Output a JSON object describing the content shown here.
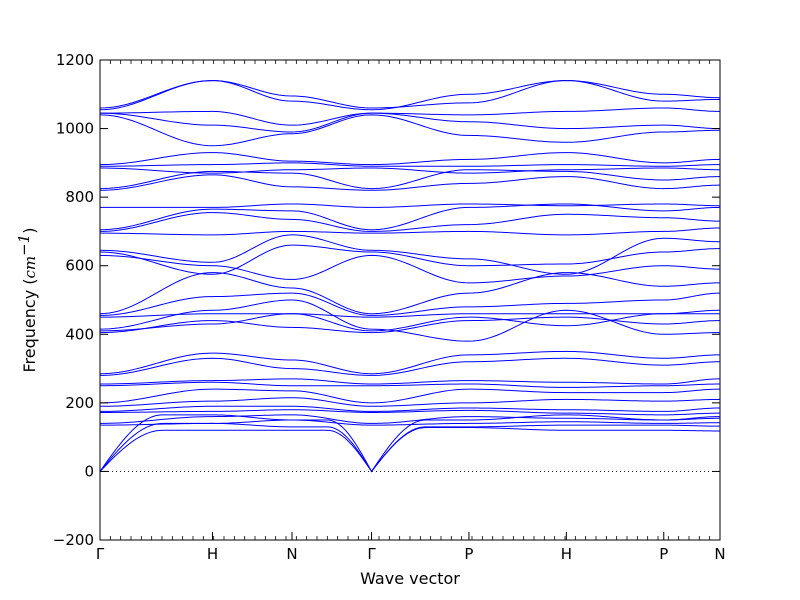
{
  "chart_data": {
    "type": "line",
    "title": "",
    "xlabel": "Wave vector",
    "ylabel": "Frequency",
    "ylabel_unit_base": "cm",
    "ylabel_unit_exp": "−1",
    "ylim": [
      -200,
      1200
    ],
    "yticks": [
      -200,
      0,
      200,
      400,
      600,
      800,
      1000,
      1200
    ],
    "grid": false,
    "legend": "none",
    "color": "#0000ff",
    "zero_line": true,
    "path_points": [
      {
        "label": "Γ",
        "x": 0
      },
      {
        "label": "H",
        "x": 1.0
      },
      {
        "label": "N",
        "x": 1.707
      },
      {
        "label": "Γ",
        "x": 2.414
      },
      {
        "label": "P",
        "x": 3.28
      },
      {
        "label": "H",
        "x": 4.146
      },
      {
        "label": "P",
        "x": 5.012
      },
      {
        "label": "N",
        "x": 5.512
      }
    ],
    "branch_values": [
      [
        0,
        120,
        120,
        0,
        128,
        120,
        120,
        118
      ],
      [
        0,
        140,
        130,
        0,
        130,
        135,
        135,
        132
      ],
      [
        0,
        165,
        150,
        0,
        150,
        165,
        150,
        155
      ],
      [
        135,
        140,
        150,
        135,
        140,
        145,
        140,
        142
      ],
      [
        140,
        160,
        165,
        140,
        160,
        155,
        150,
        160
      ],
      [
        172,
        175,
        180,
        172,
        178,
        170,
        165,
        170
      ],
      [
        175,
        190,
        190,
        175,
        185,
        180,
        175,
        185
      ],
      [
        190,
        205,
        215,
        190,
        200,
        210,
        205,
        210
      ],
      [
        200,
        240,
        235,
        200,
        240,
        230,
        230,
        240
      ],
      [
        250,
        260,
        250,
        250,
        255,
        245,
        250,
        255
      ],
      [
        255,
        265,
        270,
        255,
        265,
        260,
        255,
        270
      ],
      [
        280,
        330,
        300,
        280,
        320,
        330,
        310,
        320
      ],
      [
        285,
        345,
        325,
        285,
        340,
        350,
        330,
        340
      ],
      [
        405,
        440,
        420,
        405,
        440,
        450,
        430,
        440
      ],
      [
        410,
        430,
        460,
        410,
        450,
        425,
        460,
        470
      ],
      [
        415,
        470,
        500,
        415,
        380,
        470,
        400,
        405
      ],
      [
        450,
        460,
        460,
        450,
        460,
        460,
        460,
        460
      ],
      [
        455,
        510,
        520,
        455,
        480,
        490,
        500,
        520
      ],
      [
        460,
        580,
        535,
        460,
        520,
        580,
        540,
        550
      ],
      [
        630,
        600,
        560,
        630,
        550,
        570,
        600,
        590
      ],
      [
        640,
        575,
        660,
        640,
        600,
        605,
        640,
        650
      ],
      [
        645,
        610,
        690,
        645,
        620,
        575,
        680,
        670
      ],
      [
        695,
        690,
        700,
        695,
        700,
        690,
        700,
        710
      ],
      [
        700,
        755,
        735,
        700,
        720,
        750,
        740,
        730
      ],
      [
        705,
        765,
        760,
        705,
        770,
        780,
        760,
        770
      ],
      [
        770,
        770,
        780,
        770,
        780,
        775,
        780,
        775
      ],
      [
        820,
        865,
        830,
        820,
        840,
        860,
        825,
        835
      ],
      [
        825,
        875,
        870,
        825,
        880,
        875,
        850,
        860
      ],
      [
        885,
        870,
        880,
        885,
        870,
        880,
        885,
        880
      ],
      [
        890,
        895,
        900,
        890,
        890,
        895,
        890,
        895
      ],
      [
        895,
        930,
        905,
        895,
        910,
        930,
        900,
        910
      ],
      [
        1040,
        950,
        985,
        1040,
        980,
        960,
        990,
        995
      ],
      [
        1045,
        1010,
        990,
        1045,
        1020,
        1000,
        1010,
        1000
      ],
      [
        1045,
        1050,
        1010,
        1045,
        1040,
        1050,
        1060,
        1050
      ],
      [
        1055,
        1140,
        1080,
        1055,
        1100,
        1140,
        1080,
        1085
      ],
      [
        1060,
        1140,
        1095,
        1060,
        1075,
        1140,
        1100,
        1090
      ]
    ]
  }
}
